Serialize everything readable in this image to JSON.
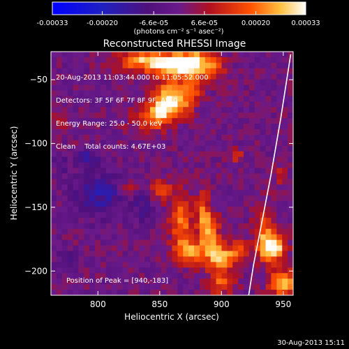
{
  "chart_data": {
    "type": "heatmap",
    "title": "Reconstructed RHESSI Image",
    "xlabel": "Heliocentric X (arcsec)",
    "ylabel": "Heliocentric Y (arcsec)",
    "xlim": [
      762,
      958
    ],
    "ylim": [
      -219,
      -28
    ],
    "xticks": [
      800,
      850,
      900,
      950
    ],
    "yticks": [
      -50,
      -100,
      -150,
      -200
    ],
    "colorbar": {
      "vmin": -0.00033,
      "vmax": 0.00033,
      "tick_values": [
        -0.00033,
        -0.0002,
        -6.6e-05,
        6.6e-05,
        0.0002,
        0.00033
      ],
      "tick_labels": [
        "-0.00033",
        "-0.00020",
        "-6.6e-05",
        "6.6e-05",
        "0.00020",
        "0.00033"
      ],
      "unit_label": "(photons cm⁻² s⁻¹ asec⁻²)"
    },
    "annotations": {
      "time_range": "20-Aug-2013 11:03:44.000 to 11:05:52.000",
      "detectors": "Detectors: 3F 5F 6F 7F 8F 9F, Att 0",
      "energy": "Energy Range: 25.0 - 50.0 keV",
      "method": "Clean",
      "counts": "Total counts: 4.67E+03",
      "peak": "Position of Peak = [940,-183]"
    },
    "peak": {
      "x": 940,
      "y": -183,
      "value": 0.00033
    },
    "limb": [
      [
        956,
        -30
      ],
      [
        948,
        -80
      ],
      [
        940,
        -125
      ],
      [
        932,
        -165
      ],
      [
        926,
        -195
      ],
      [
        922,
        -219
      ]
    ],
    "sources": [
      {
        "x": 840,
        "y": -35,
        "sx": 18,
        "sy": 6,
        "amp": 0.00025
      },
      {
        "x": 865,
        "y": -40,
        "sx": 14,
        "sy": 6,
        "amp": 0.00028
      },
      {
        "x": 880,
        "y": -35,
        "sx": 10,
        "sy": 6,
        "amp": 0.00022
      },
      {
        "x": 860,
        "y": -62,
        "sx": 12,
        "sy": 8,
        "amp": 0.00026
      },
      {
        "x": 845,
        "y": -80,
        "sx": 12,
        "sy": 7,
        "amp": 0.0002
      },
      {
        "x": 858,
        "y": -72,
        "sx": 10,
        "sy": 6,
        "amp": 0.00018
      },
      {
        "x": 878,
        "y": -53,
        "sx": 6,
        "sy": 6,
        "amp": 0.00014
      },
      {
        "x": 895,
        "y": -43,
        "sx": 6,
        "sy": 6,
        "amp": 0.00012
      },
      {
        "x": 770,
        "y": -80,
        "sx": 5,
        "sy": 5,
        "amp": 0.0001
      },
      {
        "x": 790,
        "y": -100,
        "sx": 4,
        "sy": 4,
        "amp": 8e-05
      },
      {
        "x": 825,
        "y": -135,
        "sx": 5,
        "sy": 5,
        "amp": 0.00012
      },
      {
        "x": 851,
        "y": -137,
        "sx": 6,
        "sy": 6,
        "amp": 0.00016
      },
      {
        "x": 867,
        "y": -160,
        "sx": 6,
        "sy": 14,
        "amp": 0.00022
      },
      {
        "x": 874,
        "y": -185,
        "sx": 9,
        "sy": 7,
        "amp": 0.00022
      },
      {
        "x": 885,
        "y": -158,
        "sx": 4,
        "sy": 14,
        "amp": 0.0002
      },
      {
        "x": 892,
        "y": -172,
        "sx": 5,
        "sy": 12,
        "amp": 0.00018
      },
      {
        "x": 900,
        "y": -190,
        "sx": 8,
        "sy": 8,
        "amp": 0.00024
      },
      {
        "x": 900,
        "y": -210,
        "sx": 8,
        "sy": 6,
        "amp": 0.00016
      },
      {
        "x": 915,
        "y": -185,
        "sx": 6,
        "sy": 6,
        "amp": 0.00015
      },
      {
        "x": 912,
        "y": -110,
        "sx": 4,
        "sy": 4,
        "amp": 0.00012
      },
      {
        "x": 935,
        "y": -170,
        "sx": 6,
        "sy": 14,
        "amp": 0.00018
      },
      {
        "x": 942,
        "y": -182,
        "sx": 7,
        "sy": 7,
        "amp": 0.00033
      },
      {
        "x": 950,
        "y": -210,
        "sx": 8,
        "sy": 8,
        "amp": 0.00025
      },
      {
        "x": 948,
        "y": -125,
        "sx": 4,
        "sy": 5,
        "amp": 0.00012
      },
      {
        "x": 802,
        "y": -140,
        "sx": 15,
        "sy": 12,
        "amp": -0.00014
      },
      {
        "x": 792,
        "y": -110,
        "sx": 6,
        "sy": 6,
        "amp": -0.00012
      },
      {
        "x": 770,
        "y": -115,
        "sx": 5,
        "sy": 6,
        "amp": -8e-05
      },
      {
        "x": 838,
        "y": -150,
        "sx": 6,
        "sy": 8,
        "amp": -0.0001
      },
      {
        "x": 775,
        "y": -190,
        "sx": 5,
        "sy": 5,
        "amp": -8e-05
      }
    ]
  },
  "footer_timestamp": "30-Aug-2013 15:11"
}
